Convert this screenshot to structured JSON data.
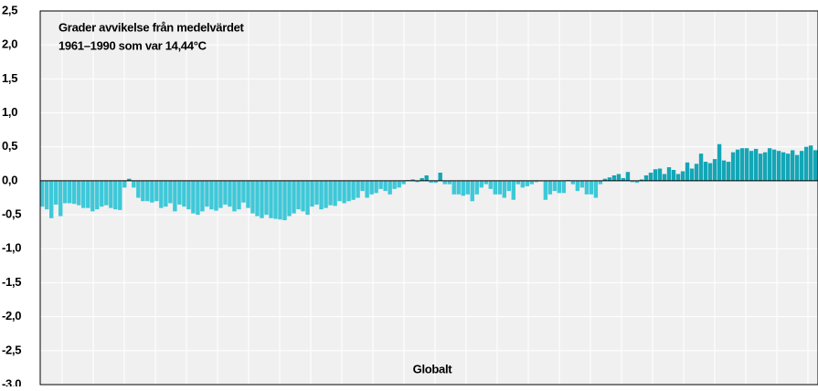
{
  "chart_data": {
    "type": "bar",
    "title": "Grader avvikelse från medelvärdet",
    "subtitle": "1961–1990 som var 14,44°C",
    "annotation": "Globalt",
    "values": [
      -0.38,
      -0.42,
      -0.55,
      -0.35,
      -0.52,
      -0.33,
      -0.33,
      -0.34,
      -0.36,
      -0.4,
      -0.4,
      -0.45,
      -0.42,
      -0.38,
      -0.36,
      -0.4,
      -0.42,
      -0.43,
      -0.1,
      0.03,
      -0.1,
      -0.25,
      -0.3,
      -0.3,
      -0.32,
      -0.3,
      -0.4,
      -0.38,
      -0.33,
      -0.45,
      -0.35,
      -0.38,
      -0.42,
      -0.48,
      -0.5,
      -0.45,
      -0.38,
      -0.42,
      -0.44,
      -0.4,
      -0.35,
      -0.38,
      -0.45,
      -0.42,
      -0.32,
      -0.4,
      -0.48,
      -0.52,
      -0.55,
      -0.5,
      -0.55,
      -0.56,
      -0.57,
      -0.58,
      -0.52,
      -0.48,
      -0.42,
      -0.45,
      -0.5,
      -0.38,
      -0.35,
      -0.42,
      -0.4,
      -0.36,
      -0.37,
      -0.3,
      -0.33,
      -0.3,
      -0.28,
      -0.25,
      -0.15,
      -0.25,
      -0.2,
      -0.18,
      -0.12,
      -0.15,
      -0.2,
      -0.12,
      -0.1,
      -0.05,
      0.01,
      0.02,
      -0.02,
      0.04,
      0.08,
      -0.03,
      -0.03,
      0.12,
      -0.05,
      -0.05,
      -0.2,
      -0.2,
      -0.22,
      -0.2,
      -0.3,
      -0.2,
      -0.1,
      -0.05,
      -0.12,
      -0.2,
      -0.2,
      -0.25,
      -0.15,
      -0.28,
      -0.05,
      -0.1,
      -0.08,
      -0.05,
      -0.02,
      -0.01,
      -0.28,
      -0.2,
      -0.15,
      -0.18,
      -0.18,
      0.01,
      -0.05,
      -0.15,
      -0.1,
      -0.2,
      -0.2,
      -0.25,
      -0.05,
      0.03,
      0.05,
      0.08,
      0.1,
      0.04,
      0.13,
      -0.02,
      -0.03,
      0.02,
      0.08,
      0.12,
      0.17,
      0.18,
      0.1,
      0.2,
      0.16,
      0.1,
      0.14,
      0.27,
      0.18,
      0.25,
      0.4,
      0.28,
      0.26,
      0.32,
      0.54,
      0.3,
      0.28,
      0.42,
      0.46,
      0.48,
      0.48,
      0.44,
      0.47,
      0.4,
      0.42,
      0.48,
      0.46,
      0.44,
      0.42,
      0.4,
      0.45,
      0.38,
      0.44,
      0.5,
      0.52,
      0.45
    ],
    "color": "#3ec8d8",
    "positive_color": "#14a6b6",
    "ylim": [
      -3.0,
      2.5
    ],
    "yticks": [
      {
        "value": 2.5,
        "label": "2,5"
      },
      {
        "value": 2.0,
        "label": "2,0"
      },
      {
        "value": 1.5,
        "label": "1,5"
      },
      {
        "value": 1.0,
        "label": "1,0"
      },
      {
        "value": 0.5,
        "label": "0,5"
      },
      {
        "value": 0.0,
        "label": "0,0"
      },
      {
        "value": -0.5,
        "label": "-0,5"
      },
      {
        "value": -1.0,
        "label": "-1,0"
      },
      {
        "value": -1.5,
        "label": "-1,5"
      },
      {
        "value": -2.0,
        "label": "-2,0"
      },
      {
        "value": -2.5,
        "label": "-2,5"
      },
      {
        "value": -3.0,
        "label": "-3,0"
      }
    ],
    "grid": true
  }
}
